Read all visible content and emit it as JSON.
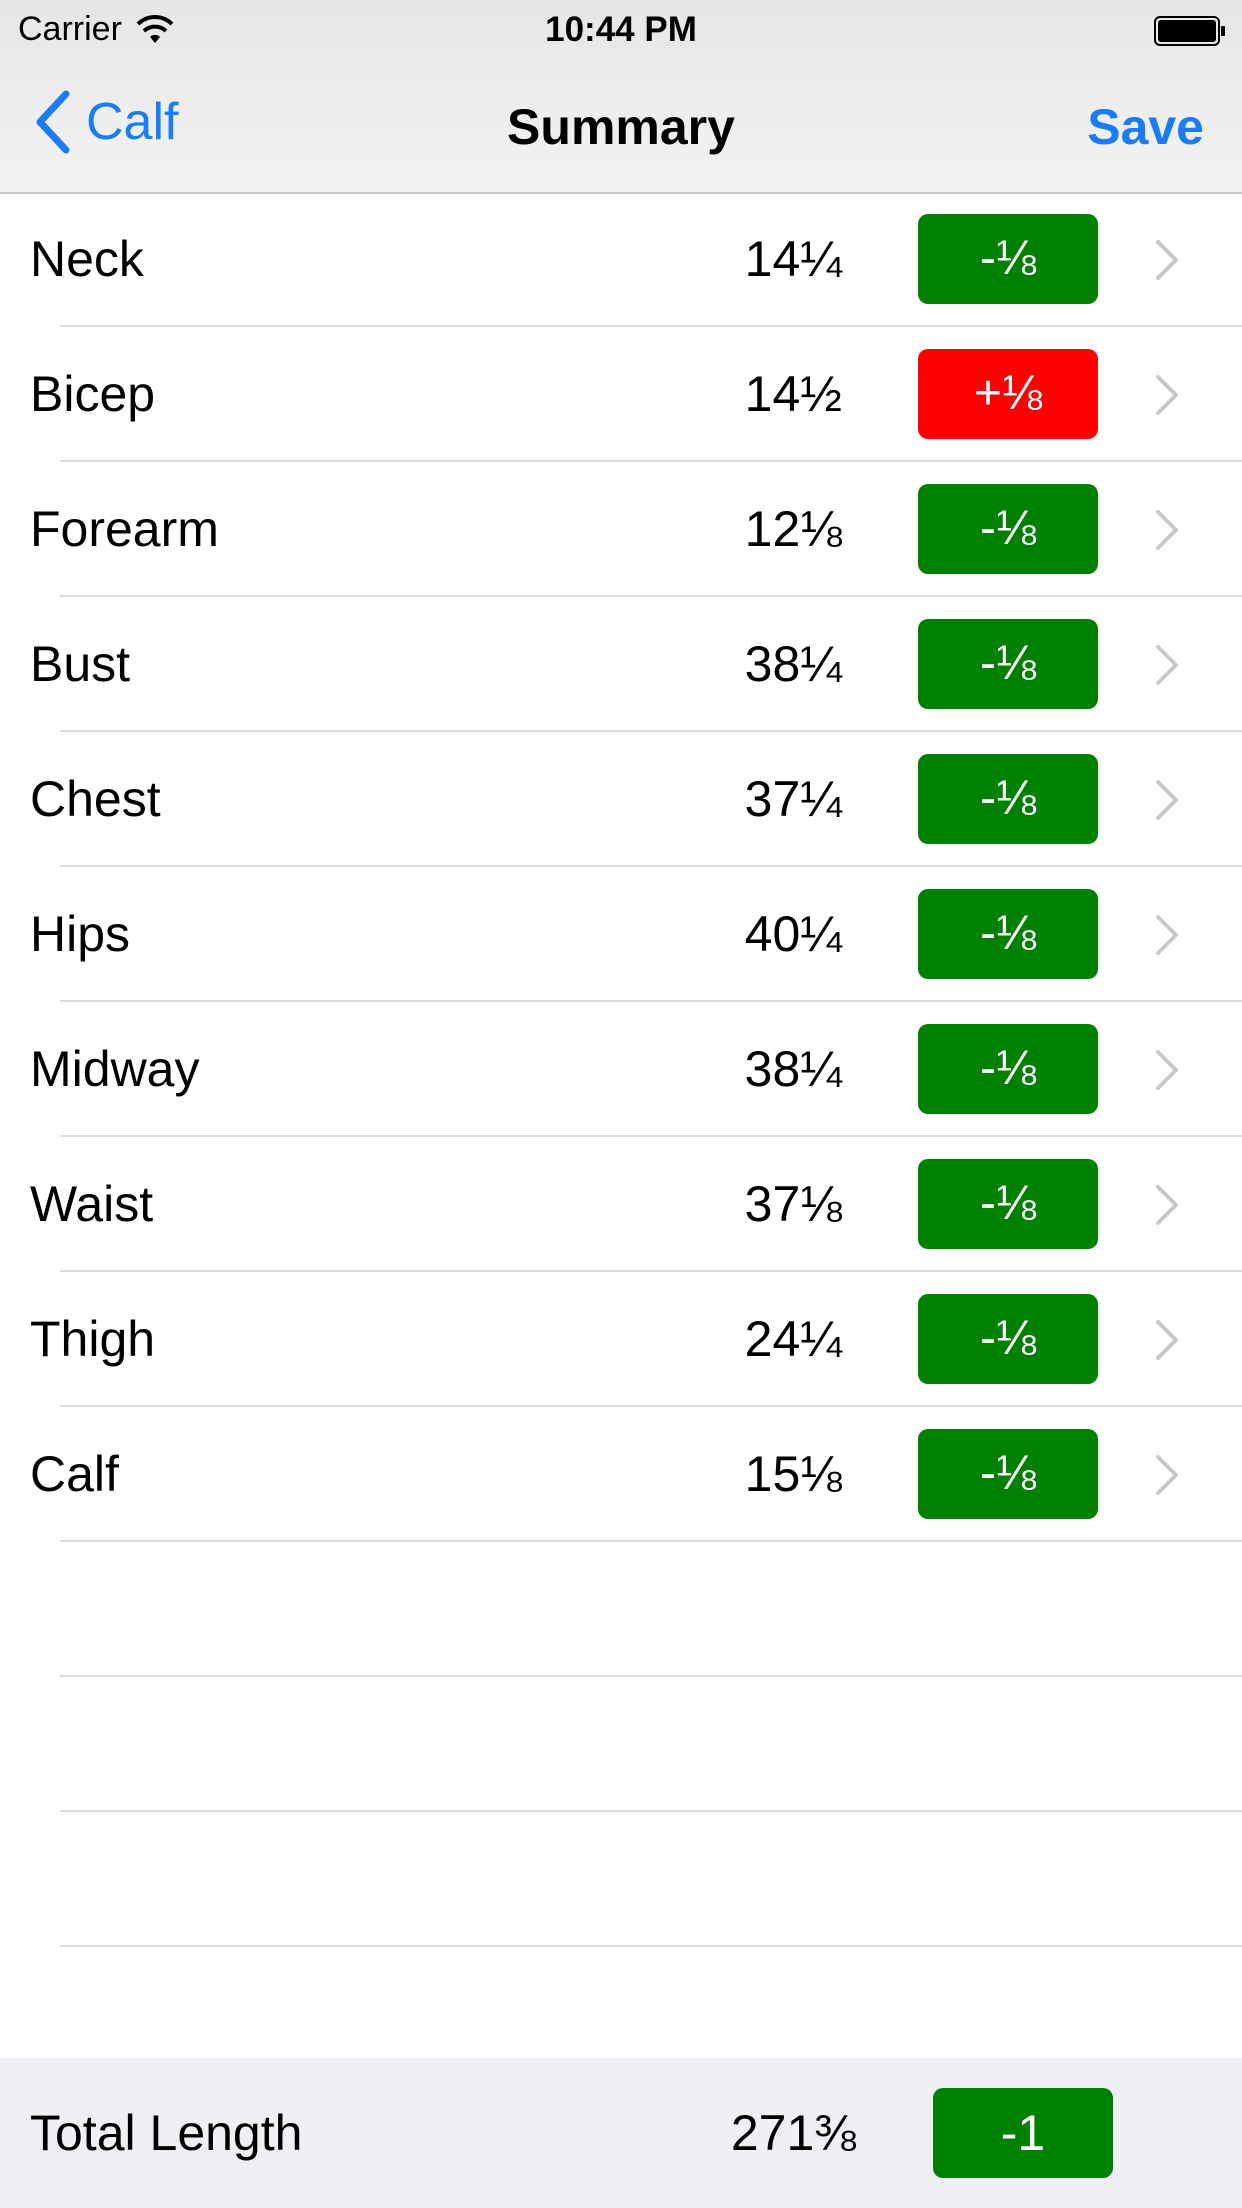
{
  "status_bar": {
    "carrier": "Carrier",
    "time": "10:44 PM",
    "wifi_icon": "wifi-icon",
    "battery_icon": "battery-icon"
  },
  "nav": {
    "back_label": "Calf",
    "back_icon": "chevron-left-icon",
    "title": "Summary",
    "save_label": "Save"
  },
  "measurements": [
    {
      "label": "Neck",
      "value": "14¼",
      "delta": "-⅛",
      "delta_type": "decrease"
    },
    {
      "label": "Bicep",
      "value": "14½",
      "delta": "+⅛",
      "delta_type": "increase"
    },
    {
      "label": "Forearm",
      "value": "12⅛",
      "delta": "-⅛",
      "delta_type": "decrease"
    },
    {
      "label": "Bust",
      "value": "38¼",
      "delta": "-⅛",
      "delta_type": "decrease"
    },
    {
      "label": "Chest",
      "value": "37¼",
      "delta": "-⅛",
      "delta_type": "decrease"
    },
    {
      "label": "Hips",
      "value": "40¼",
      "delta": "-⅛",
      "delta_type": "decrease"
    },
    {
      "label": "Midway",
      "value": "38¼",
      "delta": "-⅛",
      "delta_type": "decrease"
    },
    {
      "label": "Waist",
      "value": "37⅛",
      "delta": "-⅛",
      "delta_type": "decrease"
    },
    {
      "label": "Thigh",
      "value": "24¼",
      "delta": "-⅛",
      "delta_type": "decrease"
    },
    {
      "label": "Calf",
      "value": "15⅛",
      "delta": "-⅛",
      "delta_type": "decrease"
    }
  ],
  "total": {
    "label": "Total Length",
    "value": "271⅜",
    "delta": "-1"
  },
  "colors": {
    "accent": "#1a7cf7",
    "decrease": "#008000",
    "increase": "#ff0000"
  }
}
